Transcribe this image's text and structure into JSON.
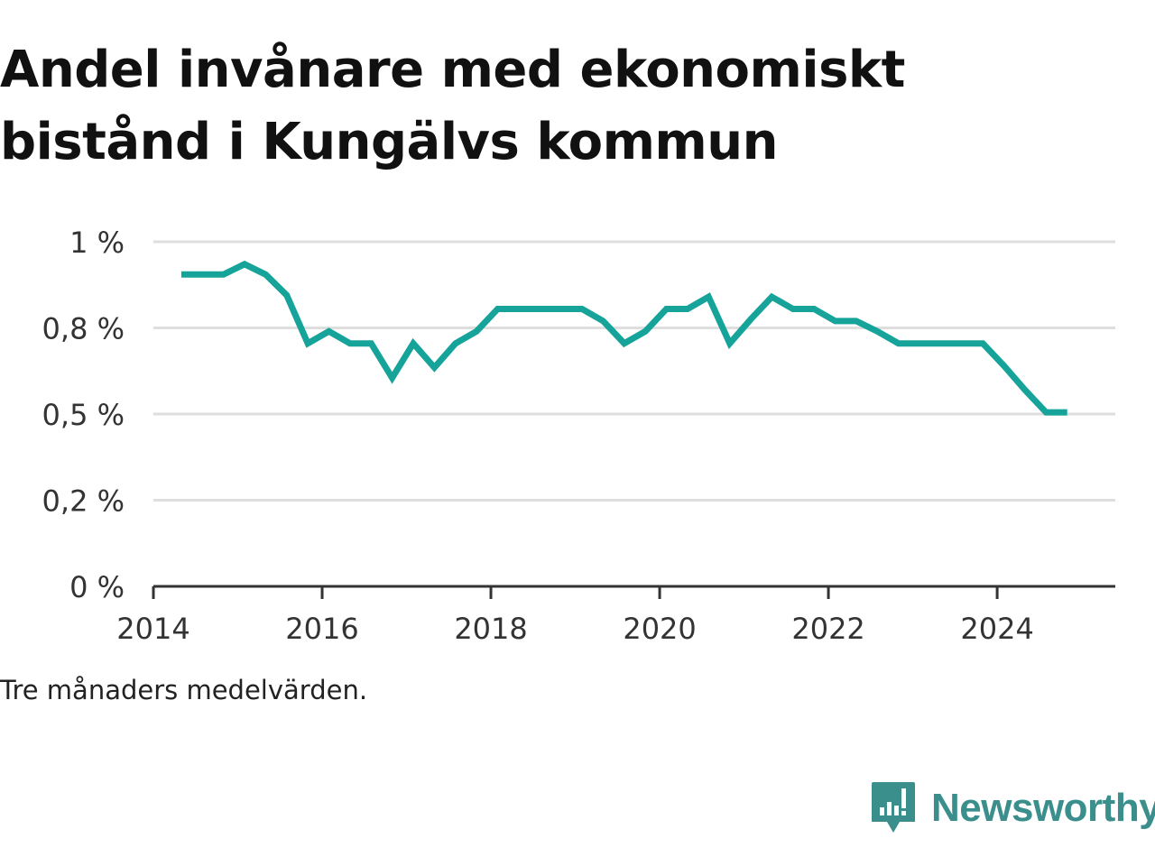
{
  "title_lines": [
    "Andel invånare med ekonomiskt",
    "bistånd i Kungälvs kommun"
  ],
  "note": "Tre månaders medelvärden.",
  "brand": {
    "name": "Newsworthy",
    "icon": "newsworthy-logo-icon",
    "color": "#3a8f8c"
  },
  "chart_data": {
    "type": "line",
    "title": "Andel invånare med ekonomiskt bistånd i Kungälvs kommun",
    "xlabel": "",
    "ylabel": "",
    "xlim": [
      2014,
      2025.4
    ],
    "ylim": [
      0,
      1
    ],
    "x_ticks": [
      2014,
      2016,
      2018,
      2020,
      2022,
      2024
    ],
    "x_tick_labels": [
      "2014",
      "2016",
      "2018",
      "2020",
      "2022",
      "2024"
    ],
    "y_ticks": [
      0,
      0.25,
      0.5,
      0.75,
      1
    ],
    "y_tick_labels": [
      "0 %",
      "0,2 %",
      "0,5 %",
      "0,8 %",
      "1 %"
    ],
    "grid": true,
    "line_color": "#16a39a",
    "series": [
      {
        "x": [
          2014.33,
          2014.58,
          2014.83,
          2015.08,
          2015.33,
          2015.58,
          2015.83,
          2016.08,
          2016.33,
          2016.58,
          2016.83,
          2017.08,
          2017.33,
          2017.58,
          2017.83,
          2018.08,
          2018.33,
          2018.58,
          2018.83,
          2019.08,
          2019.33,
          2019.58,
          2019.83,
          2020.08,
          2020.33,
          2020.58,
          2020.83,
          2021.08,
          2021.33,
          2021.58,
          2021.83,
          2022.08,
          2022.33,
          2022.58,
          2022.83,
          2023.08,
          2023.33,
          2023.58,
          2023.83,
          2024.08,
          2024.33,
          2024.58,
          2024.83
        ],
        "y": [
          0.905,
          0.905,
          0.905,
          0.935,
          0.905,
          0.845,
          0.705,
          0.74,
          0.705,
          0.705,
          0.605,
          0.705,
          0.635,
          0.705,
          0.74,
          0.805,
          0.805,
          0.805,
          0.805,
          0.805,
          0.77,
          0.705,
          0.74,
          0.805,
          0.805,
          0.84,
          0.705,
          0.775,
          0.84,
          0.805,
          0.805,
          0.77,
          0.77,
          0.74,
          0.705,
          0.705,
          0.705,
          0.705,
          0.705,
          0.64,
          0.57,
          0.505,
          0.505
        ]
      }
    ]
  }
}
